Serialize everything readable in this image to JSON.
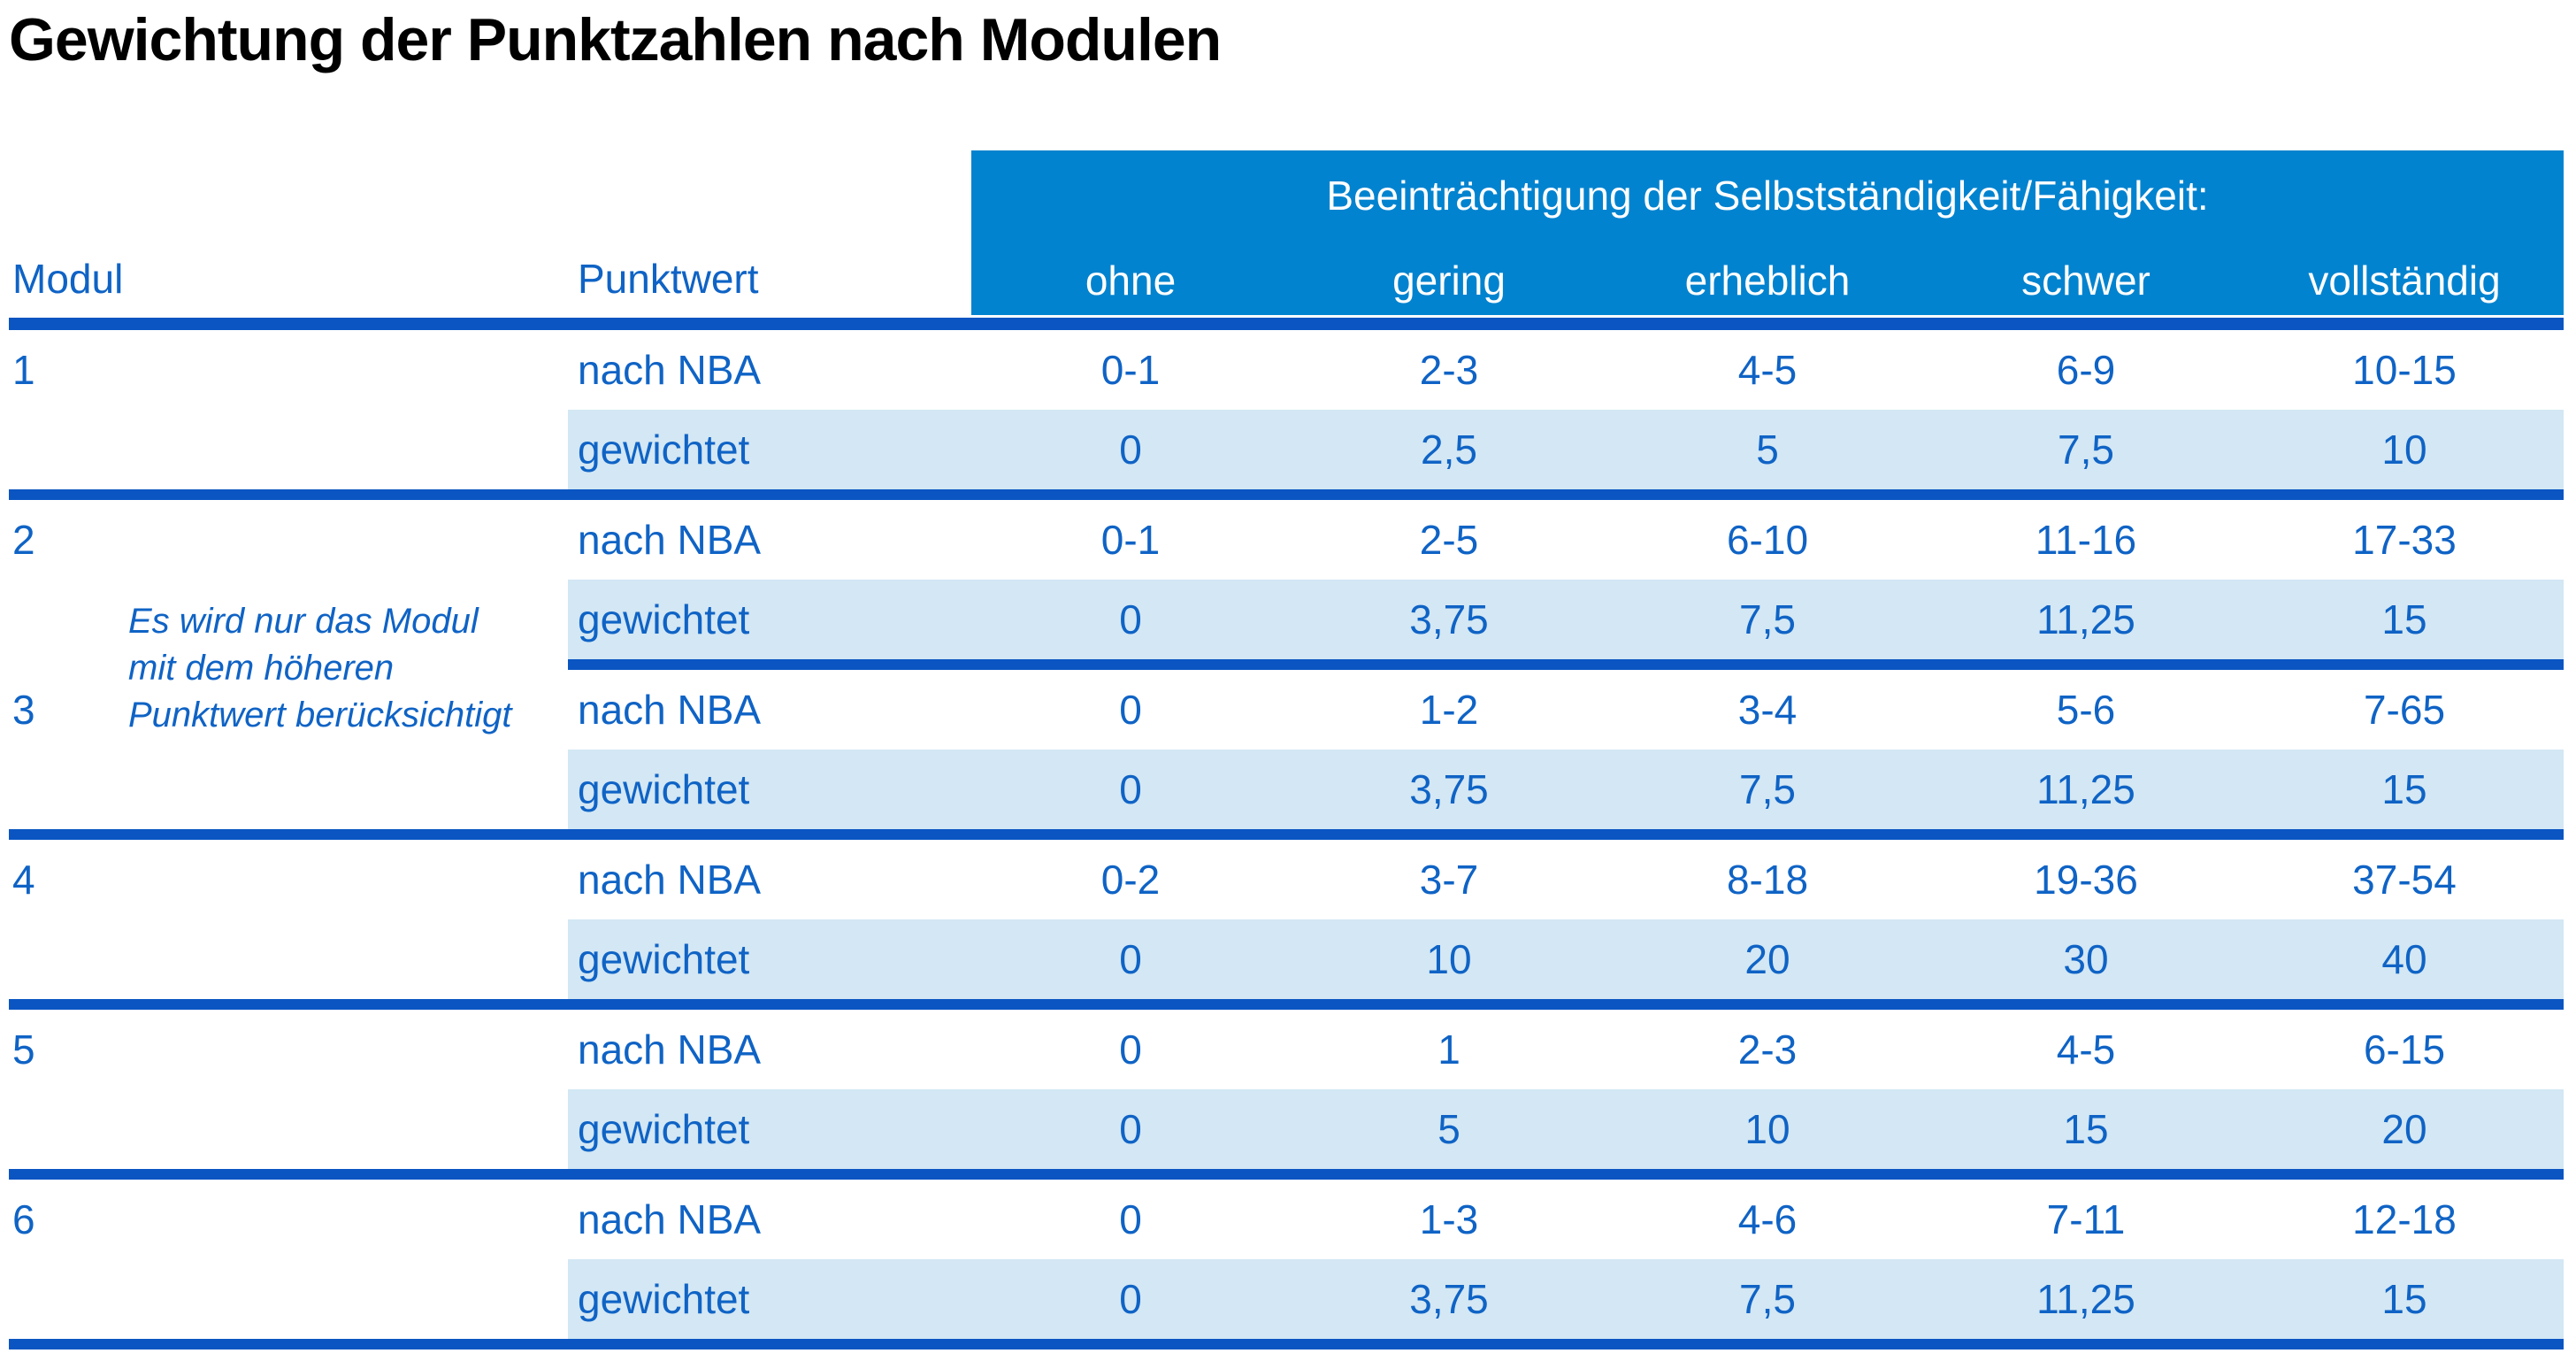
{
  "title": "Gewichtung der Punktzahlen nach Modulen",
  "colors": {
    "header_band_bg": "#0283CF",
    "separator_line": "#0A55C2",
    "shaded_row_bg": "#D3E7F4",
    "table_text": "#0F63C5",
    "header_text": "#FFFFFF",
    "title_text": "#000000"
  },
  "table": {
    "header": {
      "modul": "Modul",
      "punktwert": "Punktwert",
      "band_title": "Beeinträchtigung der Selbstständigkeit/Fähigkeit:",
      "severity_levels": [
        "ohne",
        "gering",
        "erheblich",
        "schwer",
        "vollständig"
      ]
    },
    "labels": {
      "nba": "nach NBA",
      "weighted": "gewichtet"
    },
    "note": {
      "lines": [
        "Es wird nur das Modul",
        "mit dem höheren",
        "Punktwert berücksichtigt"
      ]
    },
    "modules": [
      {
        "id": "1",
        "nba": [
          "0-1",
          "2-3",
          "4-5",
          "6-9",
          "10-15"
        ],
        "weighted": [
          "0",
          "2,5",
          "5",
          "7,5",
          "10"
        ]
      },
      {
        "id": "2",
        "nba": [
          "0-1",
          "2-5",
          "6-10",
          "11-16",
          "17-33"
        ],
        "weighted": [
          "0",
          "3,75",
          "7,5",
          "11,25",
          "15"
        ]
      },
      {
        "id": "3",
        "nba": [
          "0",
          "1-2",
          "3-4",
          "5-6",
          "7-65"
        ],
        "weighted": [
          "0",
          "3,75",
          "7,5",
          "11,25",
          "15"
        ]
      },
      {
        "id": "4",
        "nba": [
          "0-2",
          "3-7",
          "8-18",
          "19-36",
          "37-54"
        ],
        "weighted": [
          "0",
          "10",
          "20",
          "30",
          "40"
        ]
      },
      {
        "id": "5",
        "nba": [
          "0",
          "1",
          "2-3",
          "4-5",
          "6-15"
        ],
        "weighted": [
          "0",
          "5",
          "10",
          "15",
          "20"
        ]
      },
      {
        "id": "6",
        "nba": [
          "0",
          "1-3",
          "4-6",
          "7-11",
          "12-18"
        ],
        "weighted": [
          "0",
          "3,75",
          "7,5",
          "11,25",
          "15"
        ]
      }
    ]
  }
}
